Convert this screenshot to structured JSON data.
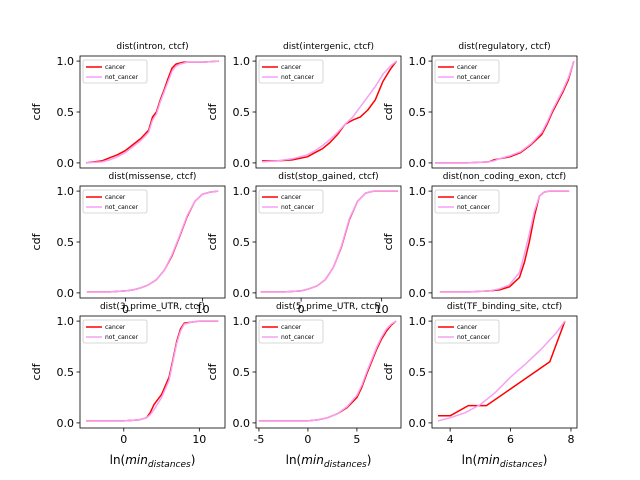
{
  "chart_data": [
    {
      "type": "line",
      "title": "dist(intron, ctcf)",
      "xlabel": "",
      "ylabel": "cdf",
      "xlim": [
        -5.8,
        12.8
      ],
      "ylim": [
        -0.05,
        1.05
      ],
      "xticks": [],
      "yticks": [
        0.0,
        0.5,
        1.0
      ],
      "legend": "top-left",
      "series": [
        {
          "name": "cancer",
          "color": "#ff0000",
          "x": [
            -5,
            -3,
            -2,
            -1,
            0,
            1,
            2,
            3,
            3.5,
            4,
            4.5,
            5,
            5.5,
            6,
            6.5,
            7,
            7.5,
            8,
            10,
            12
          ],
          "y": [
            0.0,
            0.02,
            0.05,
            0.08,
            0.12,
            0.18,
            0.24,
            0.32,
            0.45,
            0.5,
            0.62,
            0.72,
            0.83,
            0.93,
            0.97,
            0.98,
            0.99,
            0.99,
            0.99,
            1.0
          ]
        },
        {
          "name": "not_cancer",
          "color": "#f5a0f5",
          "x": [
            -5,
            -3,
            -2,
            -1,
            0,
            1,
            2,
            3,
            3.5,
            4,
            4.5,
            5,
            5.5,
            6,
            6.5,
            7,
            7.5,
            8,
            10,
            12
          ],
          "y": [
            0.0,
            0.01,
            0.03,
            0.06,
            0.1,
            0.16,
            0.22,
            0.3,
            0.42,
            0.48,
            0.6,
            0.7,
            0.8,
            0.9,
            0.95,
            0.97,
            0.98,
            0.99,
            0.99,
            1.0
          ]
        }
      ]
    },
    {
      "type": "line",
      "title": "dist(intergenic, ctcf)",
      "xlabel": "",
      "ylabel": "cdf",
      "xlim": [
        -0.4,
        9.2
      ],
      "ylim": [
        -0.05,
        1.05
      ],
      "xticks": [],
      "yticks": [
        0.0,
        0.5,
        1.0
      ],
      "legend": "top-left",
      "series": [
        {
          "name": "cancer",
          "color": "#ff0000",
          "x": [
            0,
            1,
            2,
            3,
            3.5,
            4,
            4.5,
            5,
            5.5,
            6,
            6.5,
            7,
            7.5,
            8,
            8.5,
            8.9
          ],
          "y": [
            0.02,
            0.02,
            0.03,
            0.06,
            0.1,
            0.14,
            0.2,
            0.28,
            0.38,
            0.42,
            0.45,
            0.52,
            0.62,
            0.8,
            0.92,
            1.0
          ]
        },
        {
          "name": "not_cancer",
          "color": "#f5a0f5",
          "x": [
            0,
            1,
            2,
            3,
            3.5,
            4,
            4.5,
            5,
            5.5,
            6,
            6.5,
            7,
            7.5,
            8,
            8.5,
            8.9
          ],
          "y": [
            0.01,
            0.02,
            0.04,
            0.08,
            0.12,
            0.17,
            0.23,
            0.3,
            0.38,
            0.45,
            0.55,
            0.65,
            0.75,
            0.87,
            0.95,
            1.0
          ]
        }
      ]
    },
    {
      "type": "line",
      "title": "dist(regulatory, ctcf)",
      "xlabel": "",
      "ylabel": "cdf",
      "xlim": [
        -5.3,
        8.3
      ],
      "ylim": [
        -0.05,
        1.05
      ],
      "xticks": [],
      "yticks": [
        0.0,
        0.5,
        1.0
      ],
      "legend": "top-left",
      "series": [
        {
          "name": "cancer",
          "color": "#ff0000",
          "x": [
            -5,
            -2,
            0,
            0.5,
            1,
            2,
            3,
            4,
            5,
            5.5,
            6,
            6.5,
            7,
            7.5,
            8
          ],
          "y": [
            0.0,
            0.0,
            0.01,
            0.03,
            0.04,
            0.06,
            0.1,
            0.18,
            0.28,
            0.38,
            0.5,
            0.6,
            0.7,
            0.82,
            1.0
          ]
        },
        {
          "name": "not_cancer",
          "color": "#f5a0f5",
          "x": [
            -5,
            -2,
            0,
            0.5,
            1,
            2,
            3,
            4,
            5,
            5.5,
            6,
            6.5,
            7,
            7.5,
            8
          ],
          "y": [
            0.0,
            0.0,
            0.01,
            0.02,
            0.04,
            0.07,
            0.11,
            0.19,
            0.3,
            0.4,
            0.52,
            0.62,
            0.72,
            0.84,
            1.0
          ]
        }
      ]
    },
    {
      "type": "line",
      "title": "dist(missense, ctcf)",
      "xlabel": "",
      "ylabel": "cdf",
      "xlim": [
        -5.9,
        12.9
      ],
      "ylim": [
        -0.05,
        1.05
      ],
      "xticks": [
        0,
        10
      ],
      "yticks": [
        0.0,
        0.5,
        1.0
      ],
      "legend": "top-left",
      "series": [
        {
          "name": "cancer",
          "color": "#ff0000",
          "x": [
            -5,
            -2,
            0,
            1,
            2,
            3,
            4,
            5,
            6,
            7,
            8,
            9,
            10,
            11,
            12
          ],
          "y": [
            0.01,
            0.01,
            0.02,
            0.03,
            0.05,
            0.08,
            0.13,
            0.22,
            0.36,
            0.55,
            0.75,
            0.9,
            0.97,
            0.99,
            1.0
          ]
        },
        {
          "name": "not_cancer",
          "color": "#f5a0f5",
          "x": [
            -5,
            -2,
            0,
            1,
            2,
            3,
            4,
            5,
            6,
            7,
            8,
            9,
            10,
            11,
            12
          ],
          "y": [
            0.01,
            0.01,
            0.02,
            0.03,
            0.05,
            0.08,
            0.13,
            0.22,
            0.37,
            0.56,
            0.76,
            0.9,
            0.97,
            0.99,
            1.0
          ]
        }
      ]
    },
    {
      "type": "line",
      "title": "dist(stop_gained, ctcf)",
      "xlabel": "",
      "ylabel": "cdf",
      "xlim": [
        -5.6,
        12.4
      ],
      "ylim": [
        -0.05,
        1.05
      ],
      "xticks": [
        0,
        10
      ],
      "yticks": [
        0.0,
        0.5,
        1.0
      ],
      "legend": "top-left",
      "series": [
        {
          "name": "cancer",
          "color": "#ff0000",
          "x": [
            -5,
            -2,
            0,
            1,
            2,
            3,
            4,
            5,
            6,
            7,
            8,
            9,
            10,
            12
          ],
          "y": [
            0.01,
            0.01,
            0.02,
            0.04,
            0.07,
            0.13,
            0.25,
            0.45,
            0.72,
            0.9,
            0.98,
            1.0,
            1.0,
            1.0
          ]
        },
        {
          "name": "not_cancer",
          "color": "#f5a0f5",
          "x": [
            -5,
            -2,
            0,
            1,
            2,
            3,
            4,
            5,
            6,
            7,
            8,
            9,
            10,
            12
          ],
          "y": [
            0.01,
            0.01,
            0.02,
            0.04,
            0.07,
            0.13,
            0.25,
            0.46,
            0.73,
            0.9,
            0.98,
            1.0,
            1.0,
            1.0
          ]
        }
      ]
    },
    {
      "type": "line",
      "title": "dist(non_coding_exon, ctcf)",
      "xlabel": "",
      "ylabel": "cdf",
      "xlim": [
        -5.8,
        8.8
      ],
      "ylim": [
        -0.05,
        1.05
      ],
      "xticks": [],
      "yticks": [
        0.0,
        0.5,
        1.0
      ],
      "legend": "top-left",
      "series": [
        {
          "name": "cancer",
          "color": "#ff0000",
          "x": [
            -5,
            -2,
            0,
            1,
            2,
            3,
            3.5,
            4,
            4.5,
            5,
            5.5,
            6,
            8
          ],
          "y": [
            0.01,
            0.01,
            0.02,
            0.03,
            0.06,
            0.15,
            0.3,
            0.5,
            0.75,
            0.95,
            0.99,
            1.0,
            1.0
          ]
        },
        {
          "name": "not_cancer",
          "color": "#f5a0f5",
          "x": [
            -5,
            -2,
            0,
            1,
            2,
            3,
            3.5,
            4,
            4.5,
            5,
            5.5,
            6,
            8
          ],
          "y": [
            0.01,
            0.01,
            0.02,
            0.04,
            0.08,
            0.2,
            0.38,
            0.58,
            0.8,
            0.95,
            0.99,
            1.0,
            1.0
          ]
        }
      ]
    },
    {
      "type": "line",
      "title": "dist(3_prime_UTR, ctcf)",
      "xlabel": "ln(min_distances)",
      "ylabel": "cdf",
      "xlim": [
        -5.8,
        13.4
      ],
      "ylim": [
        -0.05,
        1.05
      ],
      "xticks": [
        0,
        10
      ],
      "yticks": [
        0.0,
        0.5,
        1.0
      ],
      "legend": "top-left",
      "series": [
        {
          "name": "cancer",
          "color": "#ff0000",
          "x": [
            -5,
            -2,
            0,
            2,
            3,
            3.5,
            4,
            5,
            6,
            6.5,
            7,
            7.5,
            8,
            9,
            10,
            12.5
          ],
          "y": [
            0.02,
            0.02,
            0.02,
            0.03,
            0.05,
            0.1,
            0.18,
            0.28,
            0.45,
            0.62,
            0.8,
            0.92,
            0.98,
            0.99,
            1.0,
            1.0
          ]
        },
        {
          "name": "not_cancer",
          "color": "#f5a0f5",
          "x": [
            -5,
            -2,
            0,
            2,
            3,
            3.5,
            4,
            5,
            6,
            6.5,
            7,
            7.5,
            8,
            9,
            10,
            12.5
          ],
          "y": [
            0.02,
            0.02,
            0.02,
            0.03,
            0.05,
            0.08,
            0.13,
            0.25,
            0.42,
            0.6,
            0.78,
            0.9,
            0.97,
            0.99,
            1.0,
            1.0
          ]
        }
      ]
    },
    {
      "type": "line",
      "title": "dist(5_prime_UTR, ctcf)",
      "xlabel": "ln(min_distances)",
      "ylabel": "cdf",
      "xlim": [
        -5.3,
        9.5
      ],
      "ylim": [
        -0.05,
        1.05
      ],
      "xticks": [
        -5,
        0,
        5
      ],
      "yticks": [
        0.0,
        0.5,
        1.0
      ],
      "legend": "top-left",
      "series": [
        {
          "name": "cancer",
          "color": "#ff0000",
          "x": [
            -5,
            -2,
            0,
            1,
            2,
            3,
            4,
            5,
            5.5,
            6,
            6.5,
            7,
            7.5,
            8,
            8.5,
            9
          ],
          "y": [
            0.02,
            0.02,
            0.02,
            0.03,
            0.05,
            0.09,
            0.15,
            0.25,
            0.35,
            0.48,
            0.6,
            0.72,
            0.82,
            0.9,
            0.96,
            1.0
          ]
        },
        {
          "name": "not_cancer",
          "color": "#f5a0f5",
          "x": [
            -5,
            -2,
            0,
            1,
            2,
            3,
            4,
            5,
            5.5,
            6,
            6.5,
            7,
            7.5,
            8,
            8.5,
            9
          ],
          "y": [
            0.02,
            0.02,
            0.02,
            0.03,
            0.05,
            0.09,
            0.16,
            0.27,
            0.37,
            0.5,
            0.62,
            0.74,
            0.84,
            0.92,
            0.97,
            1.0
          ]
        }
      ]
    },
    {
      "type": "line",
      "title": "dist(TF_binding_site, ctcf)",
      "xlabel": "ln(min_distances)",
      "ylabel": "cdf",
      "xlim": [
        3.4,
        8.2
      ],
      "ylim": [
        -0.05,
        1.05
      ],
      "xticks": [
        4,
        6,
        8
      ],
      "yticks": [
        0.0,
        0.5,
        1.0
      ],
      "legend": "top-left",
      "series": [
        {
          "name": "cancer",
          "color": "#ff0000",
          "x": [
            3.6,
            4.0,
            4.6,
            5.2,
            7.3,
            7.8
          ],
          "y": [
            0.07,
            0.07,
            0.17,
            0.17,
            0.6,
            1.0
          ]
        },
        {
          "name": "not_cancer",
          "color": "#f5a0f5",
          "x": [
            3.6,
            4.0,
            4.5,
            5.0,
            5.5,
            6.0,
            6.5,
            7.0,
            7.5,
            7.8
          ],
          "y": [
            0.02,
            0.05,
            0.1,
            0.18,
            0.3,
            0.45,
            0.58,
            0.72,
            0.88,
            1.0
          ]
        }
      ]
    }
  ]
}
